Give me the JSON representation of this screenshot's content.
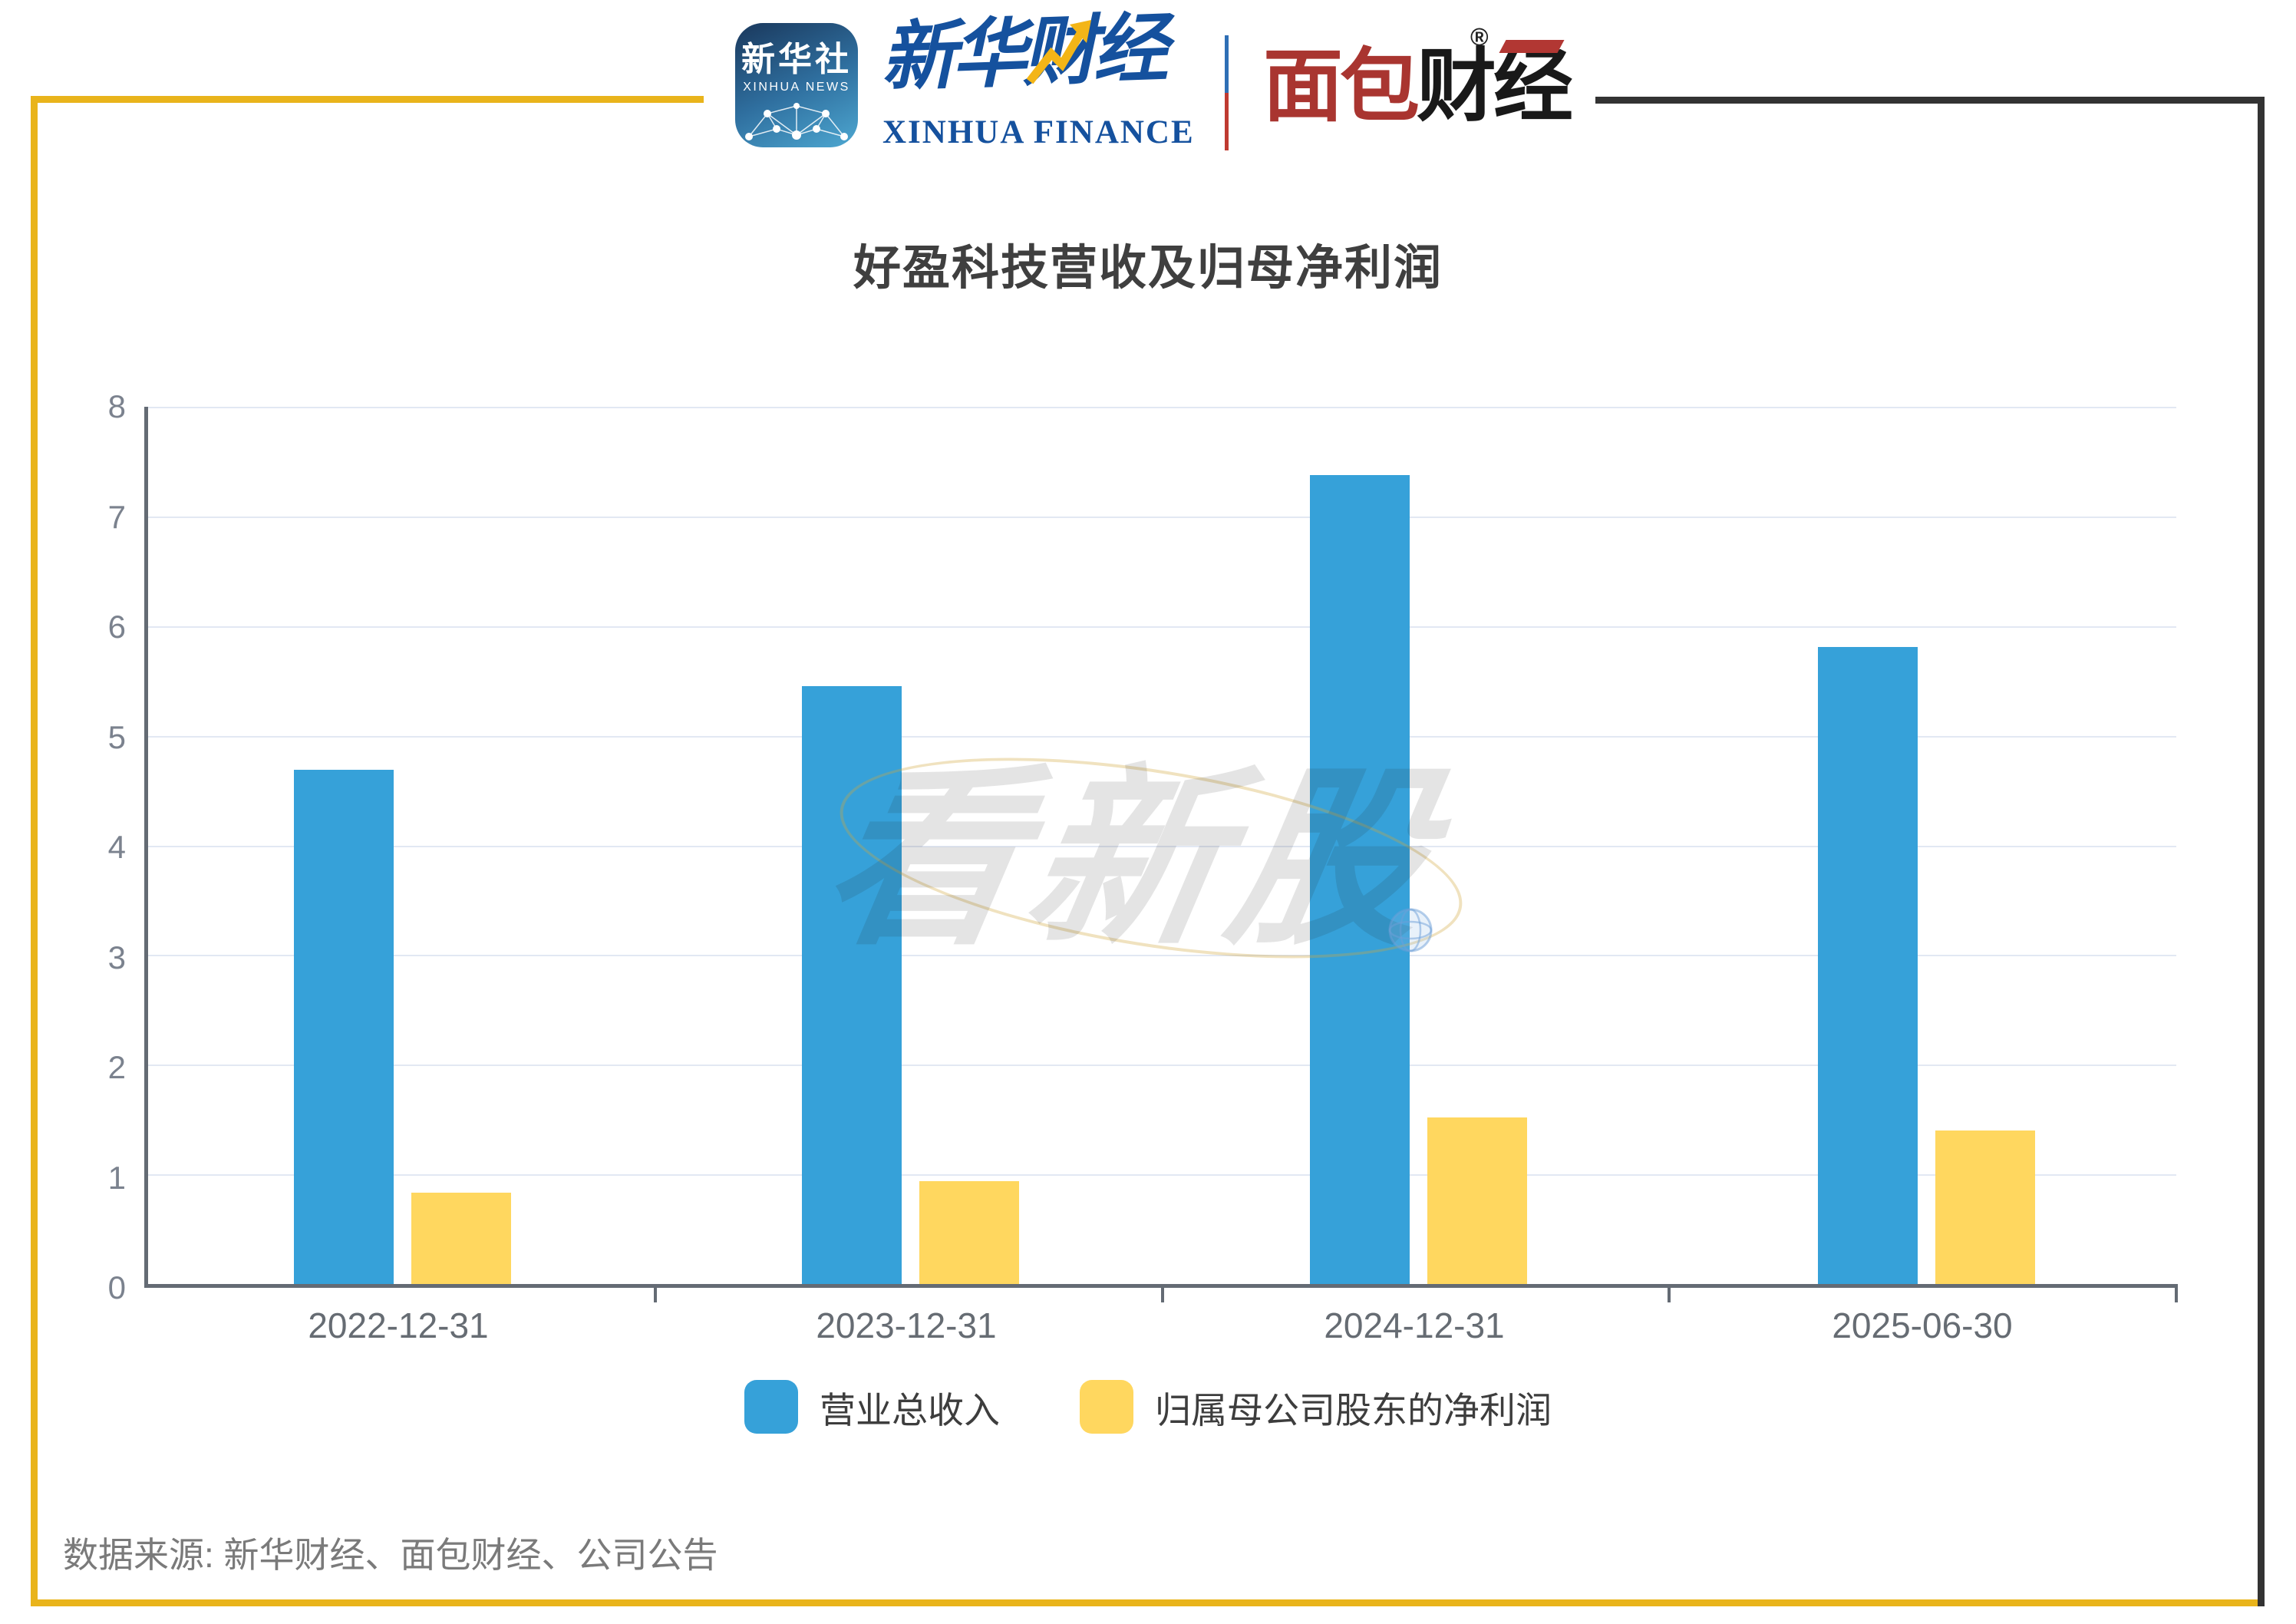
{
  "frame": {
    "accent_yellow": "#e9b41b",
    "accent_dark": "#333333"
  },
  "header": {
    "xinhua_icon": {
      "line1": "新华社",
      "line2": "XINHUA NEWS"
    },
    "xinhua_finance": {
      "cn": "新华财经",
      "en": "XINHUA FINANCE",
      "brand_blue": "#15519e",
      "arrow_yellow": "#f3b517"
    },
    "bread_finance": {
      "part1": "面包",
      "part2": "财经",
      "registered": "®",
      "brand_red": "#a93530",
      "brand_black": "#191919"
    }
  },
  "title": "好盈科技营收及归母净利润",
  "watermark": {
    "text": "看新股"
  },
  "chart_data": {
    "type": "bar",
    "title": "好盈科技营收及归母净利润",
    "categories": [
      "2022-12-31",
      "2023-12-31",
      "2024-12-31",
      "2025-06-30"
    ],
    "series": [
      {
        "name": "营业总收入",
        "color": "#36a1d9",
        "values": [
          4.69,
          5.45,
          7.38,
          5.81
        ]
      },
      {
        "name": "归属母公司股东的净利润",
        "color": "#ffd75f",
        "values": [
          0.83,
          0.94,
          1.52,
          1.4
        ]
      }
    ],
    "xlabel": "",
    "ylabel": "",
    "ylim": [
      0,
      8
    ],
    "ytick_step": 1,
    "yticks": [
      0,
      1,
      2,
      3,
      4,
      5,
      6,
      7,
      8
    ],
    "grid": true,
    "legend_position": "bottom"
  },
  "source": "数据来源: 新华财经、面包财经、公司公告"
}
